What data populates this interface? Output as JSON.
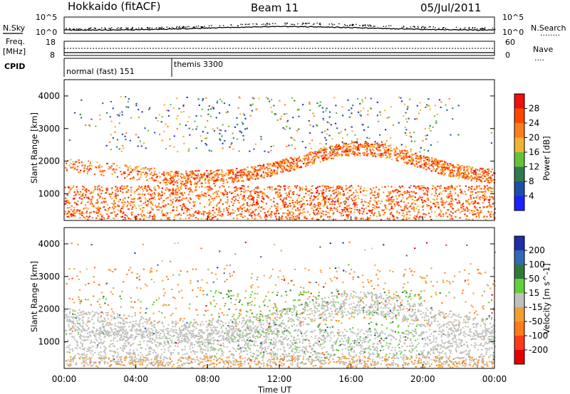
{
  "header": {
    "left": "Hokkaido (fitACF)",
    "center": "Beam 11",
    "right": "05/Jul/2011"
  },
  "status_panels": {
    "nsky_label": "N.Sky",
    "nsearch_label": "N.Search",
    "noise_ticks_top": "10^5",
    "noise_ticks_bottom": "10^0",
    "freq_label": "Freq.",
    "freq_unit": "[MHz]",
    "freq_ticks": [
      "18",
      "8"
    ],
    "nave_label": "Nave",
    "nave_ticks": [
      "60",
      "0"
    ],
    "cpid_label": "CPID",
    "cpid_segments": [
      {
        "label": "normal (fast) 151",
        "start_hour": 0
      },
      {
        "label": "themis 3300",
        "start_hour": 6.0
      }
    ]
  },
  "chart_data": [
    {
      "type": "heatmap",
      "name": "power",
      "ylabel": "Slant Range [km]",
      "xlabel": "",
      "ylim": [
        180,
        4500
      ],
      "yticks": [
        "1000",
        "2000",
        "3000",
        "4000"
      ],
      "colorbar": {
        "label": "Power [dB]",
        "ticks": [
          "4",
          "8",
          "12",
          "16",
          "20",
          "24",
          "28"
        ],
        "colors": [
          "#1a22ff",
          "#1e4fa8",
          "#2f7a4f",
          "#63c23a",
          "#f2b233",
          "#ff7d1a",
          "#ff4600",
          "#f10e0e"
        ]
      },
      "features": [
        {
          "desc": "E/near-range echoes",
          "range_km": [
            200,
            1300
          ],
          "hours": [
            0,
            24
          ],
          "level_db": "20-28"
        },
        {
          "desc": "rising F-region band",
          "range_km": [
            1200,
            2500
          ],
          "hours": [
            6,
            22
          ],
          "level_db": "16-28"
        },
        {
          "desc": "sparse far-range echoes",
          "range_km": [
            2500,
            3900
          ],
          "hours": [
            3,
            20
          ],
          "level_db": "8-20"
        }
      ]
    },
    {
      "type": "heatmap",
      "name": "velocity",
      "ylabel": "Slant Range [km]",
      "xlabel": "Time UT",
      "ylim": [
        180,
        4500
      ],
      "yticks": [
        "1000",
        "2000",
        "3000",
        "4000"
      ],
      "xticks": [
        "00:00",
        "04:00",
        "08:00",
        "12:00",
        "16:00",
        "20:00",
        "00:00"
      ],
      "colorbar": {
        "label": "Velocity [m s^-1]",
        "ticks": [
          "200",
          "100",
          "50",
          "15",
          "-15",
          "-50",
          "-100",
          "-200"
        ],
        "colors": [
          "#1e2ea8",
          "#2f6ab5",
          "#2f7a3a",
          "#5fd13a",
          "#c0c0bc",
          "#f0a030",
          "#ff7a1a",
          "#ff3a1a",
          "#e50000"
        ]
      },
      "features": [
        {
          "desc": "ground scatter (grey)",
          "range_km": [
            300,
            2600
          ],
          "hours": [
            0,
            24
          ],
          "velocity": "-15..15"
        },
        {
          "desc": "positive flows (green)",
          "range_km": [
            500,
            2600
          ],
          "hours": [
            9,
            19
          ],
          "velocity": "15..100"
        },
        {
          "desc": "negative flows (orange)",
          "range_km": [
            200,
            3200
          ],
          "hours": [
            0,
            24
          ],
          "velocity": "-100..-15"
        }
      ]
    }
  ],
  "symbols": {
    "nsearch_dots": "........",
    "nave_dots": "...."
  },
  "time_axis_label": "Time UT"
}
